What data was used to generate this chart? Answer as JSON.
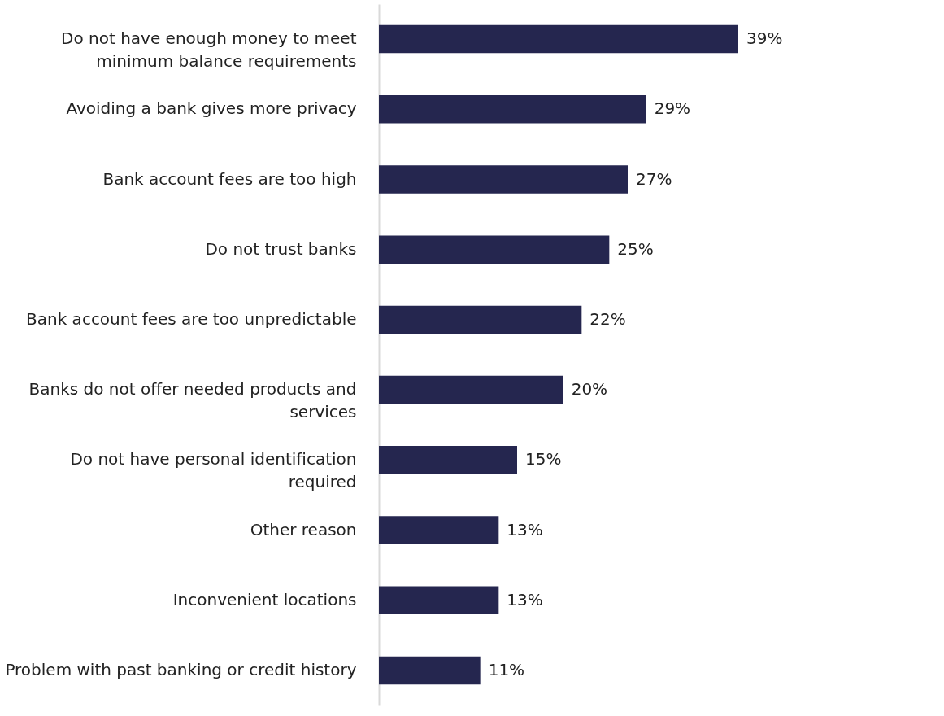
{
  "chart_data": {
    "type": "bar",
    "orientation": "horizontal",
    "categories": [
      "Do not have enough money to meet minimum balance requirements",
      "Avoiding a bank gives more privacy",
      "Bank account fees are too high",
      "Do not trust banks",
      "Bank account fees are too unpredictable",
      "Banks do not offer needed products and services",
      "Do not have personal identification required",
      "Other reason",
      "Inconvenient locations",
      "Problem with past banking or credit history"
    ],
    "values": [
      39,
      29,
      27,
      25,
      22,
      20,
      15,
      13,
      13,
      11
    ],
    "value_labels": [
      "39%",
      "29%",
      "27%",
      "25%",
      "22%",
      "20%",
      "15%",
      "13%",
      "13%",
      "11%"
    ],
    "color": "#25264f",
    "tick_labels": "y"
  }
}
